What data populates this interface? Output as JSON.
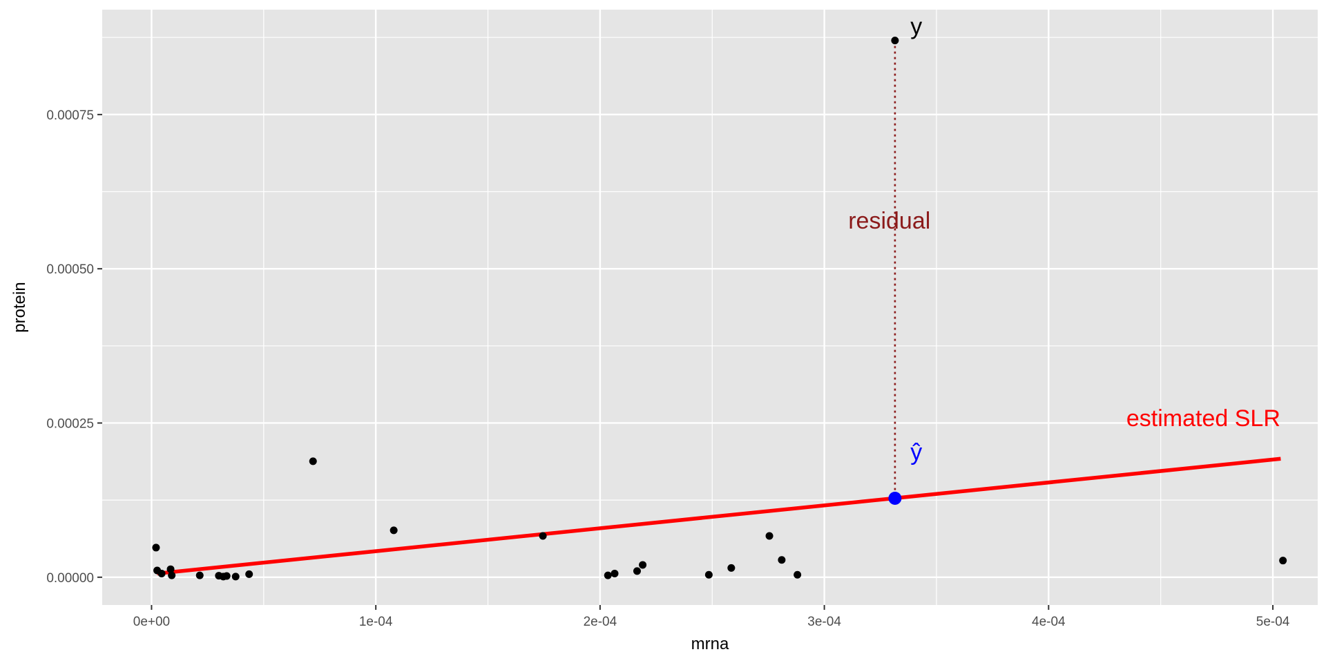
{
  "chart_data": {
    "type": "scatter",
    "xlabel": "mrna",
    "ylabel": "protein",
    "xlim": [
      -2.2e-05,
      0.00052
    ],
    "ylim": [
      -4.5e-05,
      0.00092
    ],
    "x_ticks": [
      {
        "value": 0.0,
        "label": "0e+00"
      },
      {
        "value": 0.0001,
        "label": "1e-04"
      },
      {
        "value": 0.0002,
        "label": "2e-04"
      },
      {
        "value": 0.0003,
        "label": "3e-04"
      },
      {
        "value": 0.0004,
        "label": "4e-04"
      },
      {
        "value": 0.0005,
        "label": "5e-04"
      }
    ],
    "y_ticks": [
      {
        "value": 0.0,
        "label": "0.00000"
      },
      {
        "value": 0.00025,
        "label": "0.00025"
      },
      {
        "value": 0.0005,
        "label": "0.00050"
      },
      {
        "value": 0.00075,
        "label": "0.00075"
      }
    ],
    "grid": true,
    "colors": {
      "panel": "#e5e5e5",
      "grid": "#ffffff",
      "points": "#000000",
      "fit_line": "#ff0000",
      "residual": "#8b1a1a",
      "fitted_point": "#0000ff"
    },
    "points": [
      {
        "x": 2e-06,
        "y": 4.8e-05
      },
      {
        "x": 2.5e-06,
        "y": 1.1e-05
      },
      {
        "x": 4.5e-06,
        "y": 6e-06
      },
      {
        "x": 8.5e-06,
        "y": 1.3e-05
      },
      {
        "x": 9e-06,
        "y": 3e-06
      },
      {
        "x": 2.15e-05,
        "y": 3e-06
      },
      {
        "x": 3e-05,
        "y": 2.5e-06
      },
      {
        "x": 3.2e-05,
        "y": 1e-06
      },
      {
        "x": 3.35e-05,
        "y": 2e-06
      },
      {
        "x": 3.75e-05,
        "y": 1e-06
      },
      {
        "x": 4.35e-05,
        "y": 5e-06
      },
      {
        "x": 7.2e-05,
        "y": 0.000188
      },
      {
        "x": 0.000108,
        "y": 7.6e-05
      },
      {
        "x": 0.0001745,
        "y": 6.7e-05
      },
      {
        "x": 0.0002035,
        "y": 3e-06
      },
      {
        "x": 0.0002065,
        "y": 6e-06
      },
      {
        "x": 0.0002165,
        "y": 1e-05
      },
      {
        "x": 0.000219,
        "y": 2e-05
      },
      {
        "x": 0.0002485,
        "y": 4e-06
      },
      {
        "x": 0.0002585,
        "y": 1.5e-05
      },
      {
        "x": 0.0002755,
        "y": 6.7e-05
      },
      {
        "x": 0.000281,
        "y": 2.8e-05
      },
      {
        "x": 0.000288,
        "y": 4e-06
      },
      {
        "x": 0.0003315,
        "y": 0.00087
      },
      {
        "x": 0.0005045,
        "y": 2.7e-05
      }
    ],
    "fit_line": {
      "x1": 2.5e-06,
      "y1": 6e-06,
      "x2": 0.0005035,
      "y2": 0.000192
    },
    "residual": {
      "x": 0.0003315,
      "y_from": 0.00087,
      "y_to": 0.000128
    },
    "fitted_point": {
      "x": 0.0003315,
      "y": 0.000128
    },
    "annotations": [
      {
        "id": "y",
        "text": "y",
        "x": 0.000341,
        "y": 0.00088,
        "color": "#000000",
        "anchor": "middle",
        "size": 34
      },
      {
        "id": "yhat",
        "text": "ŷ",
        "x": 0.000341,
        "y": 0.00019,
        "color": "#0000ff",
        "anchor": "middle",
        "size": 34
      },
      {
        "id": "residual",
        "text": "residual",
        "x": 0.000329,
        "y": 0.000565,
        "color": "#8b1a1a",
        "anchor": "middle",
        "size": 34
      },
      {
        "id": "estimated-slr",
        "text": "estimated SLR",
        "x": 0.000469,
        "y": 0.000245,
        "color": "#ff0000",
        "anchor": "middle",
        "size": 34
      }
    ]
  }
}
